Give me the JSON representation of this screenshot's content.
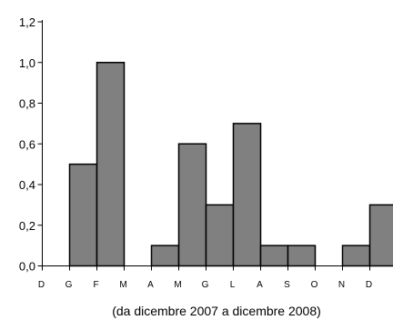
{
  "chart_data": {
    "type": "bar",
    "categories": [
      "D",
      "G",
      "F",
      "M",
      "A",
      "M",
      "G",
      "L",
      "A",
      "S",
      "O",
      "N",
      "D"
    ],
    "values": [
      0.0,
      0.5,
      1.0,
      0.0,
      0.1,
      0.6,
      0.3,
      0.7,
      0.1,
      0.1,
      0.0,
      0.1,
      0.3
    ],
    "title": "",
    "xlabel": "(da dicembre 2007 a dicembre 2008)",
    "ylabel": "",
    "ylim": [
      0,
      1.2
    ],
    "yticks": [
      "0,0",
      "0,2",
      "0,4",
      "0,6",
      "0,8",
      "1,0",
      "1,2"
    ],
    "grid": false,
    "bar_color": "#808080",
    "bar_edge_color": "#000000"
  }
}
